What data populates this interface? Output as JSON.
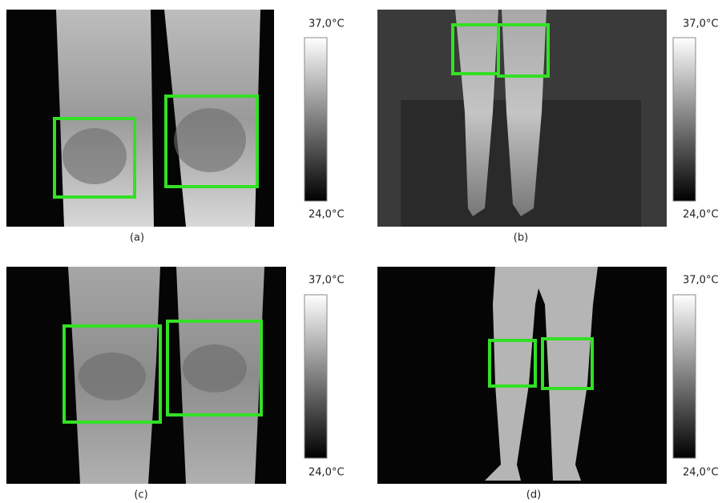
{
  "panels": [
    {
      "label": "(a)",
      "scale_max": "37,0°C",
      "scale_min": "24,0°C"
    },
    {
      "label": "(b)",
      "scale_max": "37,0°C",
      "scale_min": "24,0°C"
    },
    {
      "label": "(c)",
      "scale_max": "37,0°C",
      "scale_min": "24,0°C"
    },
    {
      "label": "(d)",
      "scale_max": "37,0°C",
      "scale_min": "24,0°C"
    }
  ]
}
